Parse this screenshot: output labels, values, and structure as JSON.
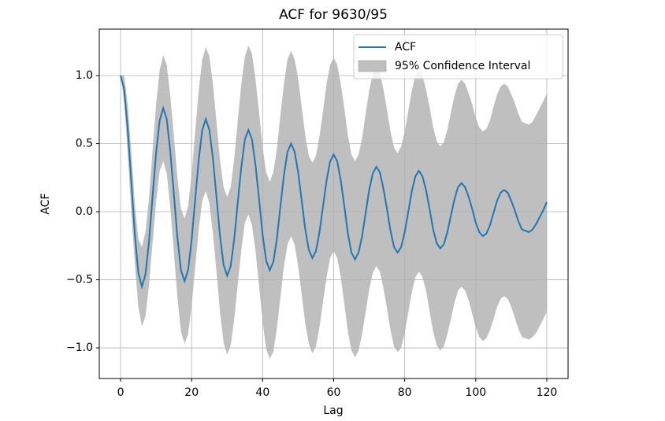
{
  "chart_data": {
    "type": "acf",
    "title": "ACF for 9630/95",
    "xlabel": "Lag",
    "ylabel": "ACF",
    "x": [
      0,
      1,
      2,
      3,
      4,
      5,
      6,
      7,
      8,
      9,
      10,
      11,
      12,
      13,
      14,
      15,
      16,
      17,
      18,
      19,
      20,
      21,
      22,
      23,
      24,
      25,
      26,
      27,
      28,
      29,
      30,
      31,
      32,
      33,
      34,
      35,
      36,
      37,
      38,
      39,
      40,
      41,
      42,
      43,
      44,
      45,
      46,
      47,
      48,
      49,
      50,
      51,
      52,
      53,
      54,
      55,
      56,
      57,
      58,
      59,
      60,
      61,
      62,
      63,
      64,
      65,
      66,
      67,
      68,
      69,
      70,
      71,
      72,
      73,
      74,
      75,
      76,
      77,
      78,
      79,
      80,
      81,
      82,
      83,
      84,
      85,
      86,
      87,
      88,
      89,
      90,
      91,
      92,
      93,
      94,
      95,
      96,
      97,
      98,
      99,
      100,
      101,
      102,
      103,
      104,
      105,
      106,
      107,
      108,
      109,
      110,
      111,
      112,
      113,
      114,
      115,
      116,
      117,
      118,
      119,
      120
    ],
    "series": [
      {
        "name": "ACF",
        "color": "#1f77b4",
        "values": [
          1.0,
          0.9,
          0.61,
          0.23,
          -0.16,
          -0.45,
          -0.55,
          -0.46,
          -0.22,
          0.11,
          0.43,
          0.67,
          0.76,
          0.68,
          0.44,
          0.13,
          -0.19,
          -0.43,
          -0.51,
          -0.43,
          -0.21,
          0.09,
          0.38,
          0.6,
          0.68,
          0.6,
          0.39,
          0.11,
          -0.18,
          -0.39,
          -0.47,
          -0.4,
          -0.2,
          0.07,
          0.33,
          0.53,
          0.6,
          0.53,
          0.34,
          0.09,
          -0.17,
          -0.36,
          -0.43,
          -0.37,
          -0.2,
          0.04,
          0.27,
          0.44,
          0.5,
          0.44,
          0.29,
          0.08,
          -0.13,
          -0.28,
          -0.34,
          -0.29,
          -0.15,
          0.04,
          0.23,
          0.37,
          0.42,
          0.37,
          0.23,
          0.04,
          -0.16,
          -0.3,
          -0.35,
          -0.3,
          -0.18,
          -0.01,
          0.16,
          0.28,
          0.33,
          0.29,
          0.17,
          0.02,
          -0.14,
          -0.26,
          -0.3,
          -0.26,
          -0.15,
          0,
          0.15,
          0.26,
          0.3,
          0.26,
          0.16,
          0.02,
          -0.13,
          -0.23,
          -0.27,
          -0.24,
          -0.15,
          -0.03,
          0.09,
          0.18,
          0.21,
          0.18,
          0.11,
          0.02,
          -0.08,
          -0.15,
          -0.18,
          -0.16,
          -0.1,
          -0.01,
          0.08,
          0.14,
          0.16,
          0.14,
          0.08,
          0.01,
          -0.07,
          -0.13,
          -0.14,
          -0.15,
          -0.13,
          -0.09,
          -0.04,
          0.01,
          0.07
        ]
      }
    ],
    "band": {
      "name": "95% Confidence Interval",
      "color": "#bfbfbf",
      "upper": [
        1.0,
        1.0,
        0.79,
        0.45,
        0.06,
        -0.2,
        -0.26,
        -0.15,
        0.1,
        0.45,
        0.79,
        1.04,
        1.15,
        1.08,
        0.85,
        0.56,
        0.25,
        0.02,
        -0.05,
        0.04,
        0.27,
        0.59,
        0.89,
        1.12,
        1.21,
        1.14,
        0.94,
        0.66,
        0.38,
        0.18,
        0.11,
        0.18,
        0.39,
        0.67,
        0.94,
        1.14,
        1.22,
        1.16,
        0.97,
        0.73,
        0.47,
        0.29,
        0.22,
        0.29,
        0.46,
        0.71,
        0.94,
        1.12,
        1.18,
        1.12,
        0.98,
        0.77,
        0.56,
        0.41,
        0.36,
        0.41,
        0.55,
        0.74,
        0.94,
        1.08,
        1.13,
        1.08,
        0.94,
        0.76,
        0.56,
        0.42,
        0.37,
        0.42,
        0.54,
        0.72,
        0.89,
        1.01,
        1.06,
        1.02,
        0.9,
        0.75,
        0.59,
        0.47,
        0.43,
        0.48,
        0.59,
        0.74,
        0.89,
        1.0,
        1.04,
        1.0,
        0.9,
        0.77,
        0.62,
        0.52,
        0.48,
        0.51,
        0.6,
        0.73,
        0.85,
        0.94,
        0.97,
        0.94,
        0.87,
        0.79,
        0.69,
        0.62,
        0.59,
        0.61,
        0.67,
        0.77,
        0.86,
        0.92,
        0.94,
        0.92,
        0.86,
        0.8,
        0.72,
        0.66,
        0.65,
        0.64,
        0.66,
        0.71,
        0.76,
        0.81,
        0.87
      ],
      "lower": [
        1.0,
        0.8,
        0.43,
        0.01,
        -0.38,
        -0.7,
        -0.84,
        -0.77,
        -0.54,
        -0.23,
        0.07,
        0.3,
        0.37,
        0.28,
        0.03,
        -0.3,
        -0.63,
        -0.88,
        -0.97,
        -0.9,
        -0.69,
        -0.41,
        -0.13,
        0.08,
        0.15,
        0.06,
        -0.16,
        -0.44,
        -0.74,
        -0.96,
        -1.05,
        -0.98,
        -0.79,
        -0.53,
        -0.28,
        -0.08,
        -0.02,
        -0.1,
        -0.29,
        -0.55,
        -0.81,
        -1.01,
        -1.08,
        -1.03,
        -0.86,
        -0.63,
        -0.4,
        -0.24,
        -0.18,
        -0.24,
        -0.4,
        -0.61,
        -0.82,
        -0.97,
        -1.04,
        -0.99,
        -0.85,
        -0.66,
        -0.48,
        -0.34,
        -0.29,
        -0.34,
        -0.48,
        -0.68,
        -0.88,
        -1.02,
        -1.07,
        -1.02,
        -0.9,
        -0.74,
        -0.57,
        -0.45,
        -0.4,
        -0.44,
        -0.56,
        -0.71,
        -0.87,
        -0.99,
        -1.03,
        -1.0,
        -0.89,
        -0.74,
        -0.59,
        -0.48,
        -0.44,
        -0.48,
        -0.58,
        -0.73,
        -0.88,
        -0.98,
        -1.02,
        -0.99,
        -0.9,
        -0.79,
        -0.67,
        -0.58,
        -0.55,
        -0.58,
        -0.65,
        -0.75,
        -0.85,
        -0.92,
        -0.95,
        -0.93,
        -0.87,
        -0.79,
        -0.7,
        -0.64,
        -0.62,
        -0.64,
        -0.7,
        -0.78,
        -0.86,
        -0.92,
        -0.93,
        -0.94,
        -0.92,
        -0.89,
        -0.84,
        -0.79,
        -0.73
      ]
    },
    "xlim": [
      -6,
      126
    ],
    "ylim": [
      -1.225,
      1.341
    ],
    "xticks": [
      0,
      20,
      40,
      60,
      80,
      100,
      120
    ],
    "yticks": [
      {
        "value": -1.0,
        "label": "−1.0"
      },
      {
        "value": -0.5,
        "label": "−0.5"
      },
      {
        "value": 0.0,
        "label": "0.0"
      },
      {
        "value": 0.5,
        "label": "0.5"
      },
      {
        "value": 1.0,
        "label": "1.0"
      }
    ],
    "grid": true,
    "legend": "upper right"
  }
}
